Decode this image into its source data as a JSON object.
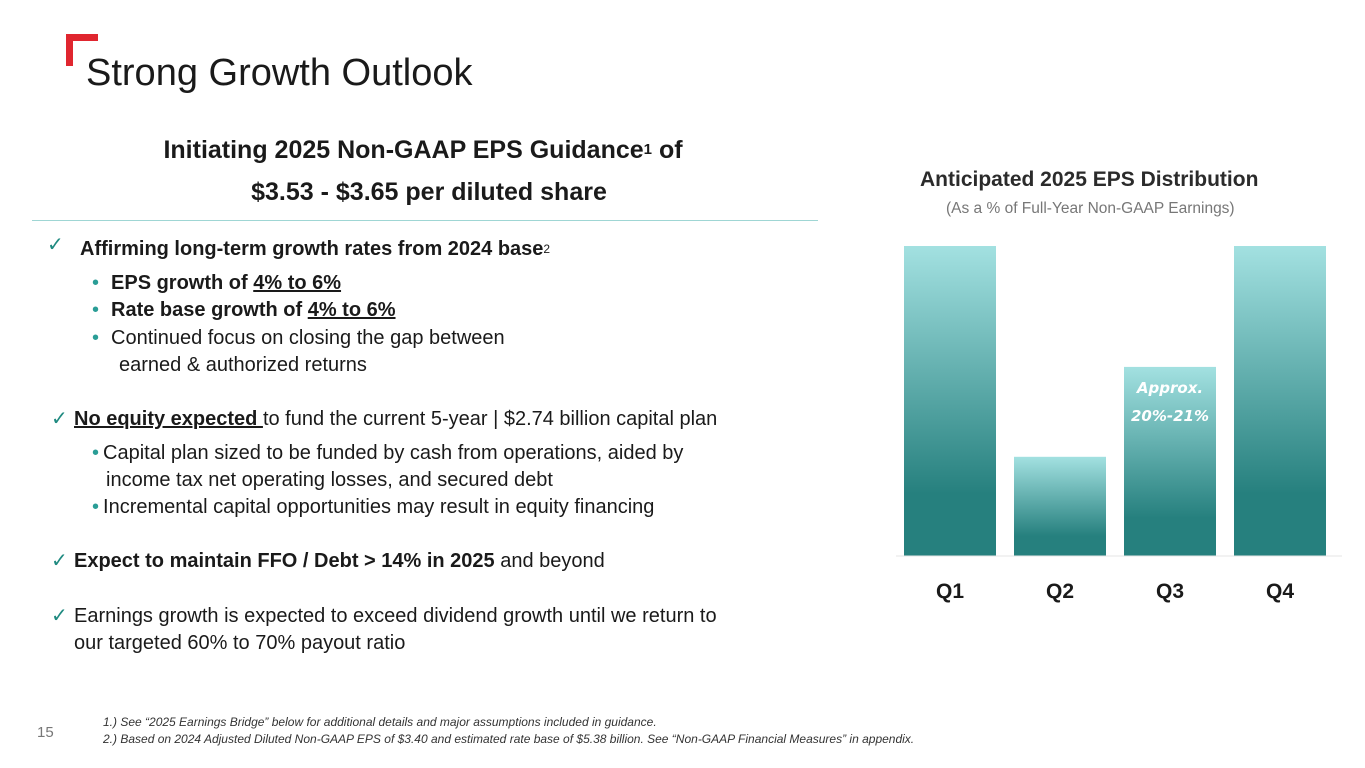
{
  "slide": {
    "title": "Strong Growth Outlook",
    "page_number": "15",
    "accent_color": "#e0262f"
  },
  "guidance": {
    "line1": "Initiating 2025 Non-GAAP EPS Guidance",
    "line1_sup": "1",
    "line1_end": " of",
    "line2": "$3.53 - $3.65 per diluted share"
  },
  "bullets": {
    "b1": {
      "check": "✓",
      "text": "Affirming long-term growth rates from 2024 base",
      "sup": "2"
    },
    "b1_sub1": {
      "dot": "•",
      "lead": "EPS growth of ",
      "value": "4% to 6%"
    },
    "b1_sub2": {
      "dot": "•",
      "lead": "Rate base growth of ",
      "value": "4% to 6%"
    },
    "b1_sub3": {
      "dot": "•",
      "line1": "Continued focus on closing the gap between",
      "line2": "earned & authorized returns"
    },
    "b2": {
      "check": "✓",
      "lead": "No equity expected ",
      "rest": "to fund the current 5-year | $2.74 billion capital plan"
    },
    "b2_sub1": {
      "dot": "•",
      "line1": "Capital plan sized to be funded by cash from operations, aided by",
      "line2": "income tax net operating losses, and secured debt"
    },
    "b2_sub2": {
      "dot": "•",
      "text": "Incremental capital opportunities may result in equity financing"
    },
    "b3": {
      "check": "✓",
      "bold": "Expect to maintain FFO / Debt > 14% in 2025",
      "rest": " and beyond"
    },
    "b4": {
      "check": "✓",
      "line1": "Earnings growth is expected to exceed dividend growth until we return to",
      "line2": "our targeted 60% to 70% payout ratio"
    }
  },
  "footnotes": {
    "f1": "1.) See “2025 Earnings Bridge” below for additional details and major assumptions included in guidance.",
    "f2": "2.) Based on 2024 Adjusted Diluted Non-GAAP EPS of $3.40 and estimated rate base of $5.38 billion. See “Non-GAAP Financial Measures” in appendix."
  },
  "chart_data": {
    "type": "bar",
    "title": "Anticipated 2025 EPS Distribution",
    "subtitle": "(As a % of Full-Year Non-GAAP Earnings)",
    "categories": [
      "Q1",
      "Q2",
      "Q3",
      "Q4"
    ],
    "values": [
      100,
      32,
      61,
      100
    ],
    "value_scale": "relative height (Q1 = 100); values not labeled except Q3",
    "annotations": [
      {
        "category": "Q3",
        "line1": "Approx.",
        "line2": "20%-21%"
      }
    ],
    "xlabel": "",
    "ylabel": "",
    "ylim": [
      0,
      100
    ],
    "colors": {
      "top": "#a3e1e1",
      "bottom": "#26807e",
      "label": "#1a1a1a",
      "annotation": "#ffffff"
    }
  }
}
